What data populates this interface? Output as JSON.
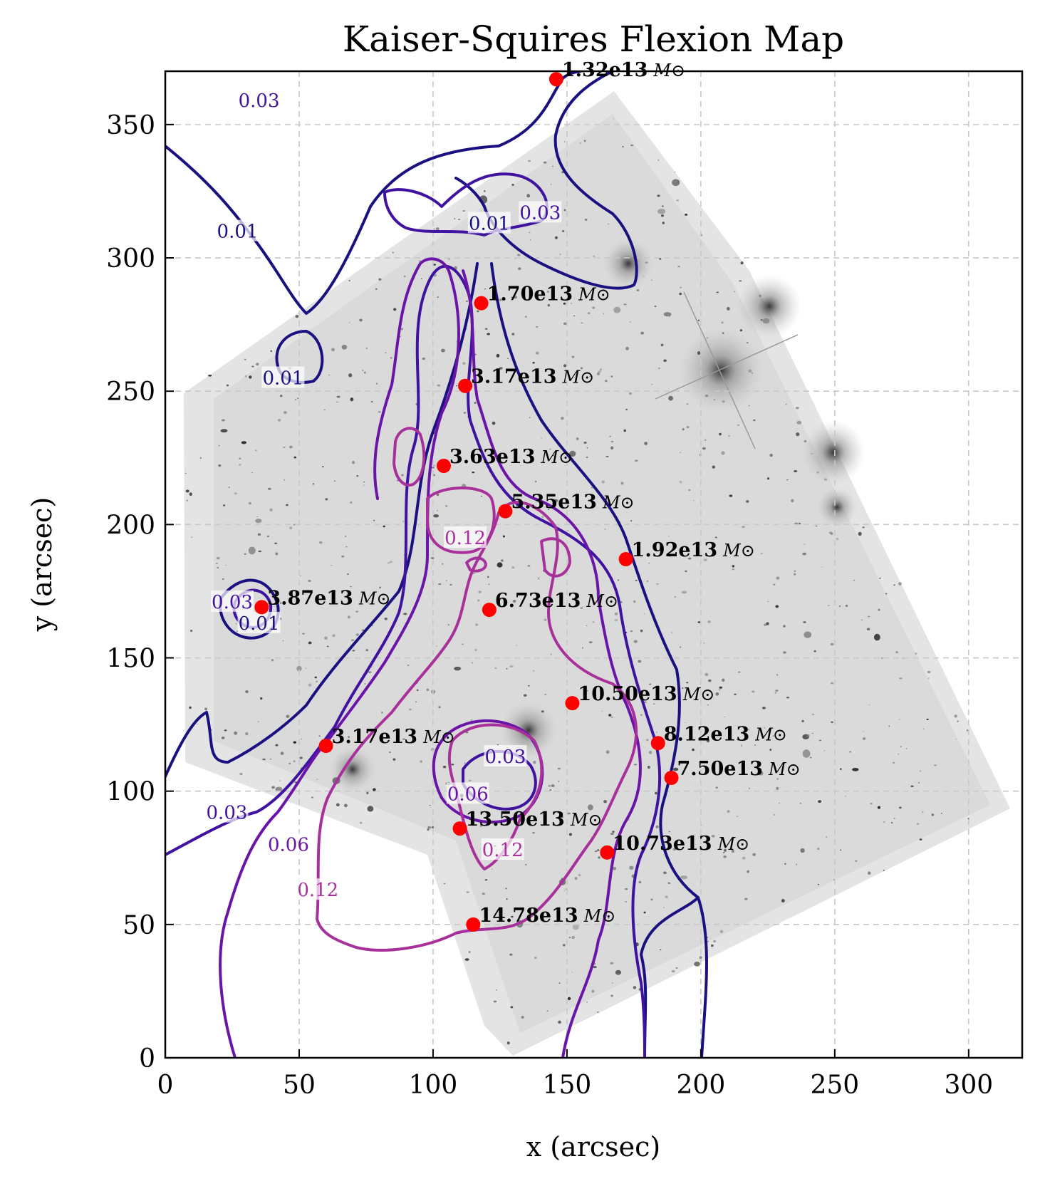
{
  "chart_data": {
    "type": "scatter",
    "title": "Kaiser-Squires Flexion Map",
    "xlabel": "x (arcsec)",
    "ylabel": "y (arcsec)",
    "xlim": [
      0,
      320
    ],
    "ylim": [
      0,
      370
    ],
    "x_ticks": [
      0,
      50,
      100,
      150,
      200,
      250,
      300
    ],
    "y_ticks": [
      0,
      50,
      100,
      150,
      200,
      250,
      300,
      350
    ],
    "grid": true,
    "background": "grayscale galaxy cluster image",
    "mass_unit": "M⊙",
    "point_color": "#ff0000",
    "points": [
      {
        "x": 146,
        "y": 367,
        "label": "1.32e13"
      },
      {
        "x": 118,
        "y": 283,
        "label": "1.70e13"
      },
      {
        "x": 112,
        "y": 252,
        "label": "3.17e13"
      },
      {
        "x": 104,
        "y": 222,
        "label": "3.63e13"
      },
      {
        "x": 127,
        "y": 205,
        "label": "5.35e13"
      },
      {
        "x": 172,
        "y": 187,
        "label": "1.92e13"
      },
      {
        "x": 36,
        "y": 169,
        "label": "3.87e13"
      },
      {
        "x": 121,
        "y": 168,
        "label": "6.73e13"
      },
      {
        "x": 152,
        "y": 133,
        "label": "10.50e13"
      },
      {
        "x": 184,
        "y": 118,
        "label": "8.12e13"
      },
      {
        "x": 60,
        "y": 117,
        "label": "3.17e13"
      },
      {
        "x": 189,
        "y": 105,
        "label": "7.50e13"
      },
      {
        "x": 110,
        "y": 86,
        "label": "13.50e13"
      },
      {
        "x": 165,
        "y": 77,
        "label": "10.73e13"
      },
      {
        "x": 115,
        "y": 50,
        "label": "14.78e13"
      }
    ],
    "contour_levels": [
      {
        "level": "0.01",
        "color": "#1a1080"
      },
      {
        "level": "0.03",
        "color": "#3f12a0"
      },
      {
        "level": "0.06",
        "color": "#6a14a8"
      },
      {
        "level": "0.12",
        "color": "#a8309a"
      }
    ],
    "contour_labels": [
      {
        "text": "0.03",
        "x": 35,
        "y": 359,
        "level": 1
      },
      {
        "text": "0.01",
        "x": 27,
        "y": 310,
        "level": 0
      },
      {
        "text": "0.01",
        "x": 121,
        "y": 313,
        "level": 0
      },
      {
        "text": "0.03",
        "x": 140,
        "y": 317,
        "level": 1
      },
      {
        "text": "0.01",
        "x": 44,
        "y": 255,
        "level": 0
      },
      {
        "text": "0.12",
        "x": 112,
        "y": 195,
        "level": 3
      },
      {
        "text": "0.03",
        "x": 25,
        "y": 171,
        "level": 1
      },
      {
        "text": "0.01",
        "x": 35,
        "y": 163,
        "level": 0
      },
      {
        "text": "0.03",
        "x": 127,
        "y": 113,
        "level": 1
      },
      {
        "text": "0.06",
        "x": 113,
        "y": 99,
        "level": 2
      },
      {
        "text": "0.03",
        "x": 23,
        "y": 92,
        "level": 1
      },
      {
        "text": "0.06",
        "x": 46,
        "y": 80,
        "level": 2
      },
      {
        "text": "0.12",
        "x": 126,
        "y": 78,
        "level": 3
      },
      {
        "text": "0.12",
        "x": 57,
        "y": 63,
        "level": 3
      }
    ]
  }
}
